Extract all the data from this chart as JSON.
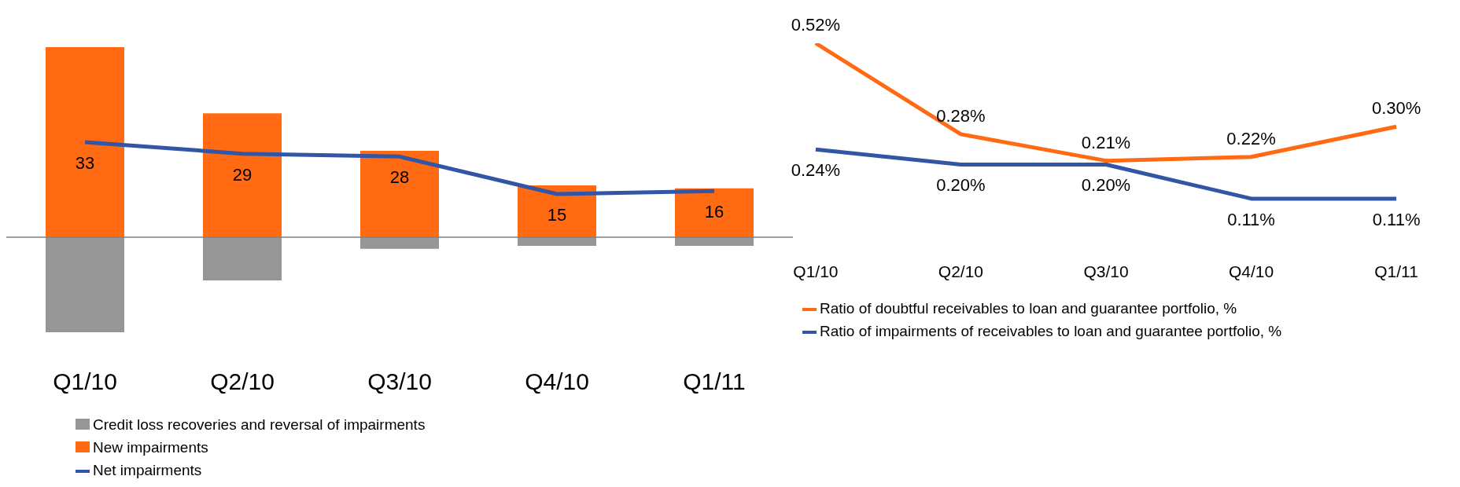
{
  "chart_data": [
    {
      "type": "bar",
      "stacked": true,
      "categories": [
        "Q1/10",
        "Q2/10",
        "Q3/10",
        "Q4/10",
        "Q1/11"
      ],
      "legend": "bottom left",
      "marker": "none",
      "series": [
        {
          "name": "Credit loss recoveries and reversal of impairments",
          "color": "#969696",
          "values": [
            -33,
            -15,
            -4,
            -3,
            -3
          ]
        },
        {
          "name": "New impairments",
          "color": "#ff6a13",
          "values": [
            66,
            43,
            30,
            18,
            17
          ]
        },
        {
          "name": "Net impairments",
          "type": "line",
          "color": "#3355a5",
          "values": [
            33,
            29,
            28,
            15,
            16
          ],
          "value_labels": [
            "33",
            "29",
            "28",
            "15",
            "16"
          ]
        }
      ]
    },
    {
      "type": "line",
      "categories": [
        "Q1/10",
        "Q2/10",
        "Q3/10",
        "Q4/10",
        "Q1/11"
      ],
      "legend": "bottom left",
      "marker": "none",
      "series": [
        {
          "name": "Ratio of doubtful receivables to loan and guarantee portfolio, %",
          "color": "#ff6a13",
          "values": [
            0.52,
            0.28,
            0.21,
            0.22,
            0.3
          ],
          "value_labels": [
            "0.52%",
            "0.28%",
            "0.21%",
            "0.22%",
            "0.30%"
          ]
        },
        {
          "name": "Ratio of impairments of receivables to loan and guarantee portfolio, %",
          "color": "#3355a5",
          "values": [
            0.24,
            0.2,
            0.2,
            0.11,
            0.11
          ],
          "value_labels": [
            "0.24%",
            "0.20%",
            "0.20%",
            "0.11%",
            "0.11%"
          ]
        }
      ]
    }
  ]
}
